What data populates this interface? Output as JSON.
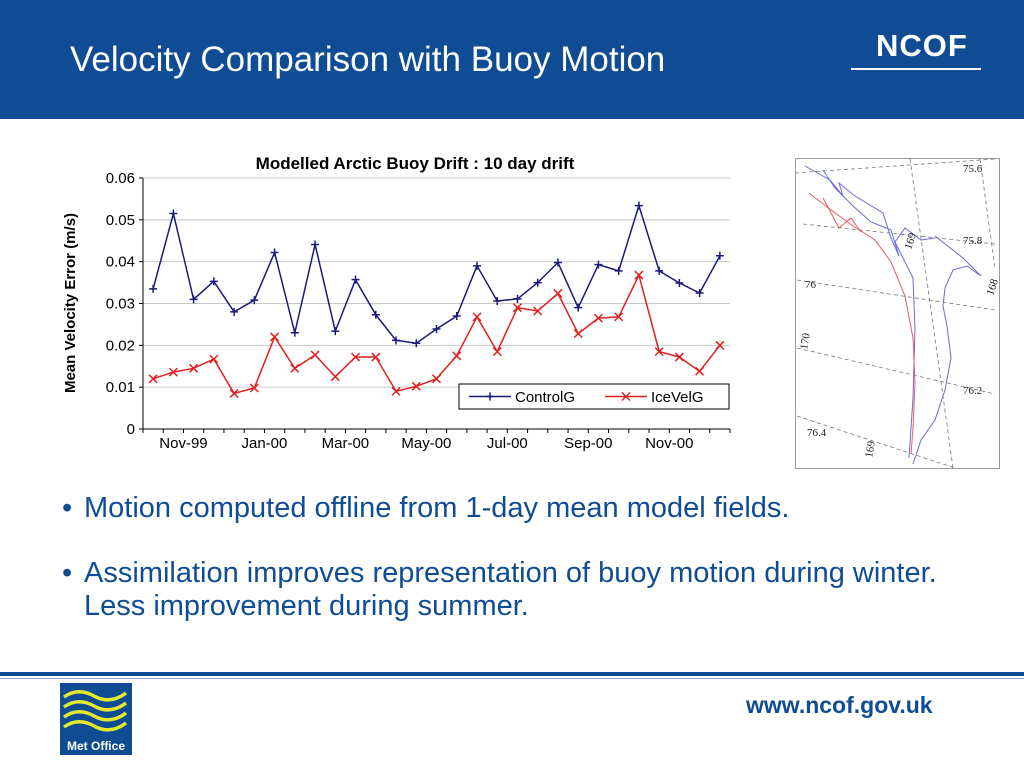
{
  "slide": {
    "title": "Velocity Comparison with Buoy Motion",
    "logo_text": "NCOF",
    "footer_url": "www.ncof.gov.uk",
    "footer_logo_text": "Met Office",
    "bullets": [
      "Motion computed offline from 1-day mean model fields.",
      "Assimilation improves representation of buoy motion during winter. Less improvement during summer."
    ]
  },
  "colors": {
    "header_blue": "#0f4c94",
    "controlg": "#1a1a7a",
    "icevelg": "#e02020",
    "map_blue": "#6a6ad8",
    "map_red": "#e85a5a"
  },
  "chart_data": {
    "type": "line",
    "title": "Modelled Arctic Buoy Drift : 10 day drift",
    "xlabel": "",
    "ylabel": "Mean Velocity Error (m/s)",
    "ylim": [
      0,
      0.06
    ],
    "yticks": [
      "0",
      "0.01",
      "0.02",
      "0.03",
      "0.04",
      "0.05",
      "0.06"
    ],
    "xticks": [
      "Nov-99",
      "Jan-00",
      "Mar-00",
      "May-00",
      "Jul-00",
      "Sep-00",
      "Nov-00"
    ],
    "grid": "horizontal",
    "legend": "bottom-right",
    "series": [
      {
        "name": "ControlG",
        "marker": "+",
        "values": [
          0.0335,
          0.0515,
          0.031,
          0.0353,
          0.028,
          0.0308,
          0.0422,
          0.023,
          0.0441,
          0.0234,
          0.0357,
          0.0273,
          0.0212,
          0.0205,
          0.0239,
          0.027,
          0.039,
          0.0306,
          0.0311,
          0.035,
          0.0398,
          0.029,
          0.0393,
          0.0378,
          0.0534,
          0.0378,
          0.0349,
          0.0325,
          0.0414
        ]
      },
      {
        "name": "IceVelG",
        "marker": "x",
        "values": [
          0.012,
          0.0136,
          0.0145,
          0.0167,
          0.0085,
          0.0098,
          0.022,
          0.0145,
          0.0177,
          0.0125,
          0.0172,
          0.0172,
          0.009,
          0.0102,
          0.012,
          0.0175,
          0.0268,
          0.0185,
          0.029,
          0.0282,
          0.0324,
          0.0228,
          0.0265,
          0.0268,
          0.0368,
          0.0185,
          0.0172,
          0.0138,
          0.02
        ]
      }
    ]
  },
  "map": {
    "lat_labels": [
      "75.6",
      "75.8",
      "76",
      "76.2",
      "76.4"
    ],
    "lon_labels": [
      "169",
      "168",
      "170",
      "169"
    ]
  }
}
